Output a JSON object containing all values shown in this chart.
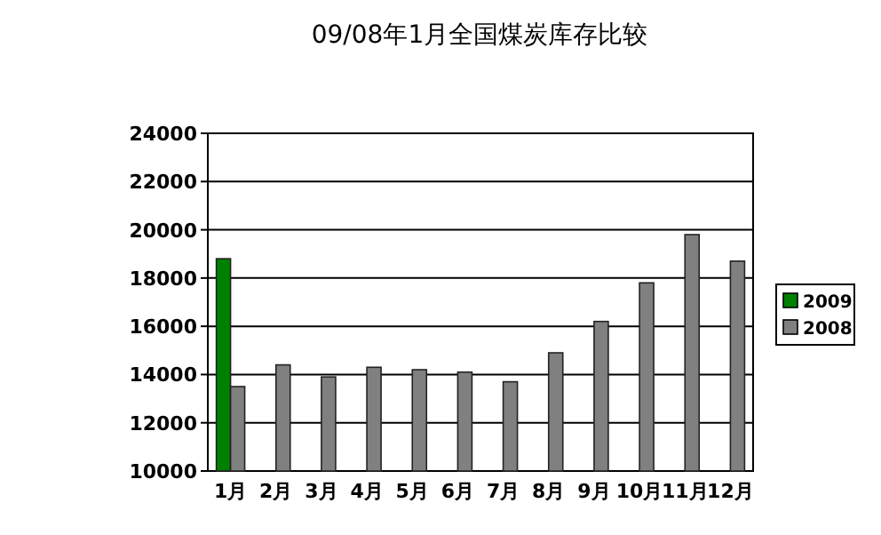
{
  "chart_data": {
    "type": "bar",
    "title": "09/08年1月全国煤炭库存比较",
    "categories": [
      "1月",
      "2月",
      "3月",
      "4月",
      "5月",
      "6月",
      "7月",
      "8月",
      "9月",
      "10月",
      "11月",
      "12月"
    ],
    "series": [
      {
        "name": "2009",
        "color": "#008000",
        "values": [
          18800,
          null,
          null,
          null,
          null,
          null,
          null,
          null,
          null,
          null,
          null,
          null
        ]
      },
      {
        "name": "2008",
        "color": "#808080",
        "values": [
          13500,
          14400,
          13900,
          14300,
          14200,
          14100,
          13700,
          14900,
          16200,
          17800,
          19800,
          18700
        ]
      }
    ],
    "ylim": [
      10000,
      24000
    ],
    "yticks": [
      10000,
      12000,
      14000,
      16000,
      18000,
      20000,
      22000,
      24000
    ],
    "grid": "y",
    "legend": "right"
  }
}
